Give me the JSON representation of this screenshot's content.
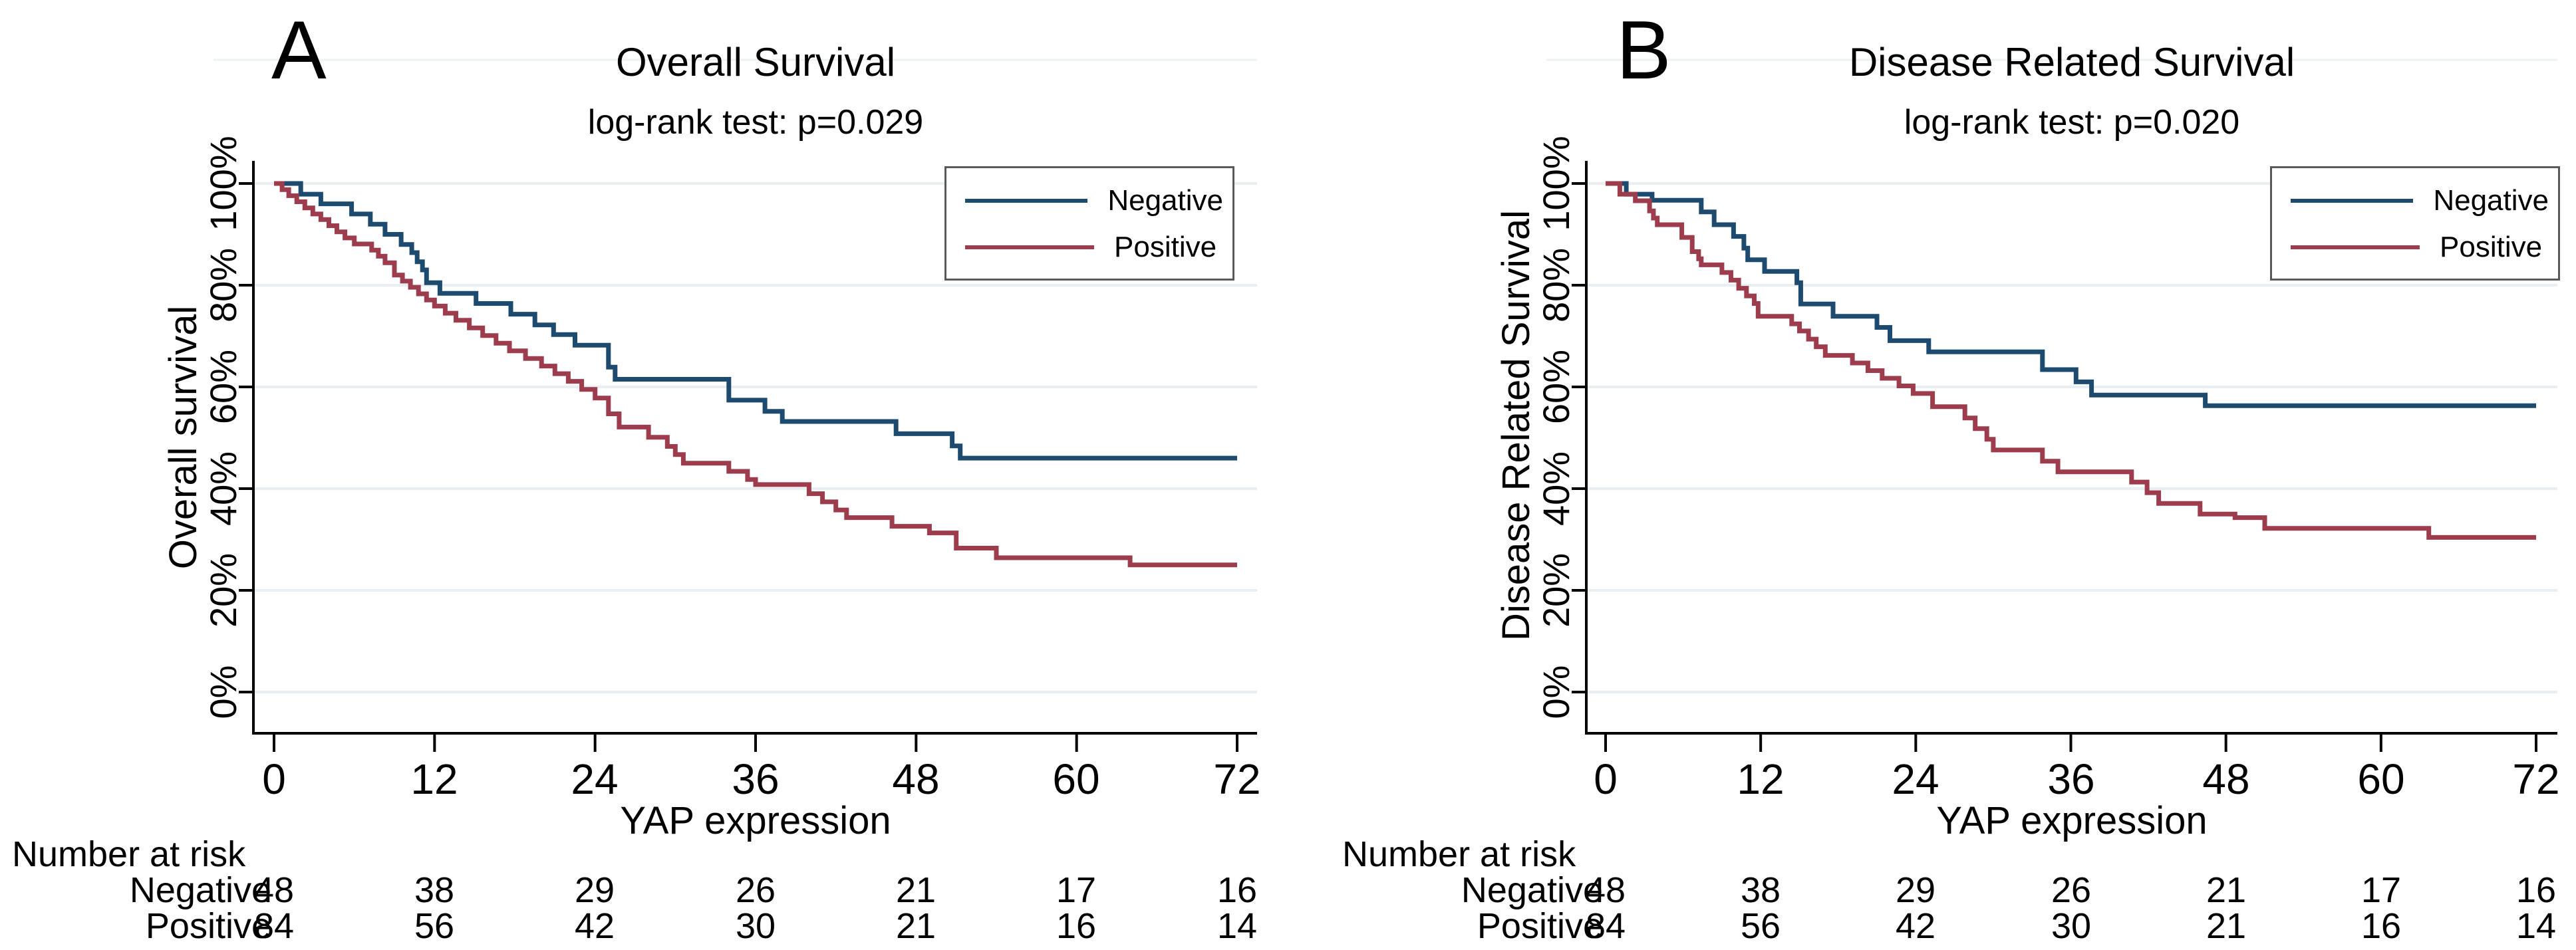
{
  "figure": {
    "background": "#ffffff",
    "colors": {
      "negative_line": "#1d4a6f",
      "positive_line": "#9d3c4c",
      "gridline": "#e8eef2",
      "plot_top_border": "#edf2f5",
      "axis": "#000000",
      "legend_border": "#595959",
      "text": "#000000"
    }
  },
  "panels": [
    {
      "letter": "A",
      "title": "Overall Survival",
      "subtitle": "log-rank test: p=0.029",
      "y_axis_title": "Overall survival",
      "x_axis_title": "YAP expression",
      "x_tick_labels": [
        "0",
        "12",
        "24",
        "36",
        "48",
        "60",
        "72"
      ],
      "y_tick_labels": [
        "0%",
        "20%",
        "40%",
        "60%",
        "80%",
        "100%"
      ],
      "legend": [
        {
          "label": "Negative"
        },
        {
          "label": "Positive"
        }
      ],
      "risk_table": {
        "header": "Number at risk",
        "rows": [
          {
            "label": "Negative",
            "values": [
              48,
              38,
              29,
              26,
              21,
              17,
              16
            ]
          },
          {
            "label": "Positive",
            "values": [
              84,
              56,
              42,
              30,
              21,
              16,
              14
            ]
          }
        ]
      }
    },
    {
      "letter": "B",
      "title": "Disease Related Survival",
      "subtitle": "log-rank test: p=0.020",
      "y_axis_title": "Disease Related Survival",
      "x_axis_title": "YAP expression",
      "x_tick_labels": [
        "0",
        "12",
        "24",
        "36",
        "48",
        "60",
        "72"
      ],
      "y_tick_labels": [
        "0%",
        "20%",
        "40%",
        "60%",
        "80%",
        "100%"
      ],
      "legend": [
        {
          "label": "Negative"
        },
        {
          "label": "Positive"
        }
      ],
      "risk_table": {
        "header": "Number at risk",
        "rows": [
          {
            "label": "Negative",
            "values": [
              48,
              38,
              29,
              26,
              21,
              17,
              16
            ]
          },
          {
            "label": "Positive",
            "values": [
              84,
              56,
              42,
              30,
              21,
              16,
              14
            ]
          }
        ]
      }
    }
  ],
  "chart_data": [
    {
      "type": "line",
      "subtype": "kaplan-meier-step",
      "panel": "A",
      "title": "Overall Survival",
      "subtitle": "log-rank test: p=0.029",
      "xlabel": "YAP expression",
      "ylabel": "Overall survival",
      "xlim": [
        0,
        72
      ],
      "ylim_percent": [
        0,
        100
      ],
      "x_ticks": [
        0,
        12,
        24,
        36,
        48,
        60,
        72
      ],
      "y_ticks_percent": [
        0,
        20,
        40,
        60,
        80,
        100
      ],
      "grid": "horizontal",
      "legend_position": "top-right",
      "log_rank_p": 0.029,
      "series": [
        {
          "name": "Negative",
          "color": "#1d4a6f",
          "steps_t_pct": [
            [
              0,
              100
            ],
            [
              2,
              97.9
            ],
            [
              3.5,
              96
            ],
            [
              5.8,
              94
            ],
            [
              7.2,
              92
            ],
            [
              8.3,
              90
            ],
            [
              9.5,
              88
            ],
            [
              10.3,
              86.4
            ],
            [
              10.7,
              84.6
            ],
            [
              11.1,
              83
            ],
            [
              11.4,
              80.5
            ],
            [
              12.4,
              78.4
            ],
            [
              15.1,
              76.4
            ],
            [
              17.7,
              74.3
            ],
            [
              19.5,
              72.2
            ],
            [
              20.9,
              70.3
            ],
            [
              22.5,
              68.2
            ],
            [
              25,
              63.9
            ],
            [
              25.5,
              61.5
            ],
            [
              34,
              57.4
            ],
            [
              36.7,
              55.2
            ],
            [
              38,
              53.2
            ],
            [
              46.5,
              50.8
            ],
            [
              50.7,
              48.4
            ],
            [
              51.3,
              46
            ],
            [
              72,
              46
            ]
          ]
        },
        {
          "name": "Positive",
          "color": "#9d3c4c",
          "steps_t_pct": [
            [
              0,
              100
            ],
            [
              0.6,
              98.8
            ],
            [
              1.1,
              97.6
            ],
            [
              1.7,
              96.4
            ],
            [
              2.3,
              95.2
            ],
            [
              2.9,
              94
            ],
            [
              3.5,
              92.9
            ],
            [
              4.1,
              91.7
            ],
            [
              4.7,
              90.5
            ],
            [
              5.3,
              89.3
            ],
            [
              6,
              88.1
            ],
            [
              7.3,
              86.9
            ],
            [
              7.8,
              85.7
            ],
            [
              8.3,
              84.4
            ],
            [
              9,
              82
            ],
            [
              9.6,
              80.8
            ],
            [
              10.2,
              79.6
            ],
            [
              10.8,
              78.3
            ],
            [
              11.4,
              77.1
            ],
            [
              12,
              75.9
            ],
            [
              12.8,
              74.5
            ],
            [
              13.6,
              73.1
            ],
            [
              14.6,
              71.6
            ],
            [
              15.6,
              70.1
            ],
            [
              16.6,
              68.6
            ],
            [
              17.6,
              67.1
            ],
            [
              18.8,
              65.6
            ],
            [
              20,
              64.1
            ],
            [
              21,
              62.6
            ],
            [
              22,
              61.1
            ],
            [
              23,
              59.5
            ],
            [
              24,
              57.8
            ],
            [
              25,
              54.7
            ],
            [
              25.8,
              52.1
            ],
            [
              28,
              50.1
            ],
            [
              29.4,
              48.3
            ],
            [
              30,
              46.7
            ],
            [
              30.6,
              45
            ],
            [
              34,
              43.4
            ],
            [
              35.4,
              41.8
            ],
            [
              36,
              40.8
            ],
            [
              40,
              39
            ],
            [
              41,
              37.4
            ],
            [
              42,
              35.8
            ],
            [
              42.8,
              34.3
            ],
            [
              46.2,
              32.6
            ],
            [
              49,
              31.3
            ],
            [
              51,
              28.3
            ],
            [
              54,
              26.4
            ],
            [
              64,
              25
            ],
            [
              72,
              25
            ]
          ]
        }
      ],
      "number_at_risk": {
        "times": [
          0,
          12,
          24,
          36,
          48,
          60,
          72
        ],
        "Negative": [
          48,
          38,
          29,
          26,
          21,
          17,
          16
        ],
        "Positive": [
          84,
          56,
          42,
          30,
          21,
          16,
          14
        ]
      }
    },
    {
      "type": "line",
      "subtype": "kaplan-meier-step",
      "panel": "B",
      "title": "Disease Related Survival",
      "subtitle": "log-rank test: p=0.020",
      "xlabel": "YAP expression",
      "ylabel": "Disease Related Survival",
      "xlim": [
        0,
        72
      ],
      "ylim_percent": [
        0,
        100
      ],
      "x_ticks": [
        0,
        12,
        24,
        36,
        48,
        60,
        72
      ],
      "y_ticks_percent": [
        0,
        20,
        40,
        60,
        80,
        100
      ],
      "grid": "horizontal",
      "legend_position": "top-right",
      "log_rank_p": 0.02,
      "series": [
        {
          "name": "Negative",
          "color": "#1d4a6f",
          "steps_t_pct": [
            [
              0,
              100
            ],
            [
              1.6,
              97.9
            ],
            [
              3.6,
              96.7
            ],
            [
              7.4,
              94.4
            ],
            [
              8.4,
              91.9
            ],
            [
              9.9,
              89.6
            ],
            [
              10.7,
              87.3
            ],
            [
              11,
              85
            ],
            [
              12.3,
              82.7
            ],
            [
              14.8,
              80.5
            ],
            [
              15.1,
              76.3
            ],
            [
              17.6,
              73.9
            ],
            [
              21,
              71.7
            ],
            [
              22,
              69.1
            ],
            [
              25,
              66.9
            ],
            [
              33.8,
              63.4
            ],
            [
              36.4,
              61
            ],
            [
              37.6,
              58.4
            ],
            [
              46.4,
              56.3
            ],
            [
              72,
              56.3
            ]
          ]
        },
        {
          "name": "Positive",
          "color": "#9d3c4c",
          "steps_t_pct": [
            [
              0,
              100
            ],
            [
              1.1,
              97.9
            ],
            [
              2.3,
              96.6
            ],
            [
              3.4,
              94.6
            ],
            [
              3.7,
              93.2
            ],
            [
              4,
              91.9
            ],
            [
              5.9,
              89.4
            ],
            [
              6.7,
              86.6
            ],
            [
              7.2,
              85.2
            ],
            [
              7.4,
              84
            ],
            [
              9,
              82.5
            ],
            [
              9.7,
              81
            ],
            [
              10.3,
              79.4
            ],
            [
              10.9,
              77.9
            ],
            [
              11.5,
              76.4
            ],
            [
              11.8,
              73.9
            ],
            [
              14.4,
              72.4
            ],
            [
              15,
              71
            ],
            [
              15.7,
              69.4
            ],
            [
              16.3,
              67.9
            ],
            [
              17,
              66.2
            ],
            [
              19.1,
              64.7
            ],
            [
              20.3,
              63.2
            ],
            [
              21.4,
              61.7
            ],
            [
              22.7,
              60.2
            ],
            [
              23.8,
              58.7
            ],
            [
              25.3,
              56.1
            ],
            [
              27.8,
              53.9
            ],
            [
              28.6,
              51.8
            ],
            [
              29.5,
              49.7
            ],
            [
              30,
              47.6
            ],
            [
              33.8,
              45.4
            ],
            [
              35,
              43.3
            ],
            [
              40.7,
              41.3
            ],
            [
              41.9,
              39.2
            ],
            [
              42.8,
              37.1
            ],
            [
              46,
              35
            ],
            [
              48.7,
              34.3
            ],
            [
              51,
              32.2
            ],
            [
              63.7,
              30.4
            ],
            [
              72,
              30.4
            ]
          ]
        }
      ],
      "number_at_risk": {
        "times": [
          0,
          12,
          24,
          36,
          48,
          60,
          72
        ],
        "Negative": [
          48,
          38,
          29,
          26,
          21,
          17,
          16
        ],
        "Positive": [
          84,
          56,
          42,
          30,
          21,
          16,
          14
        ]
      }
    }
  ]
}
